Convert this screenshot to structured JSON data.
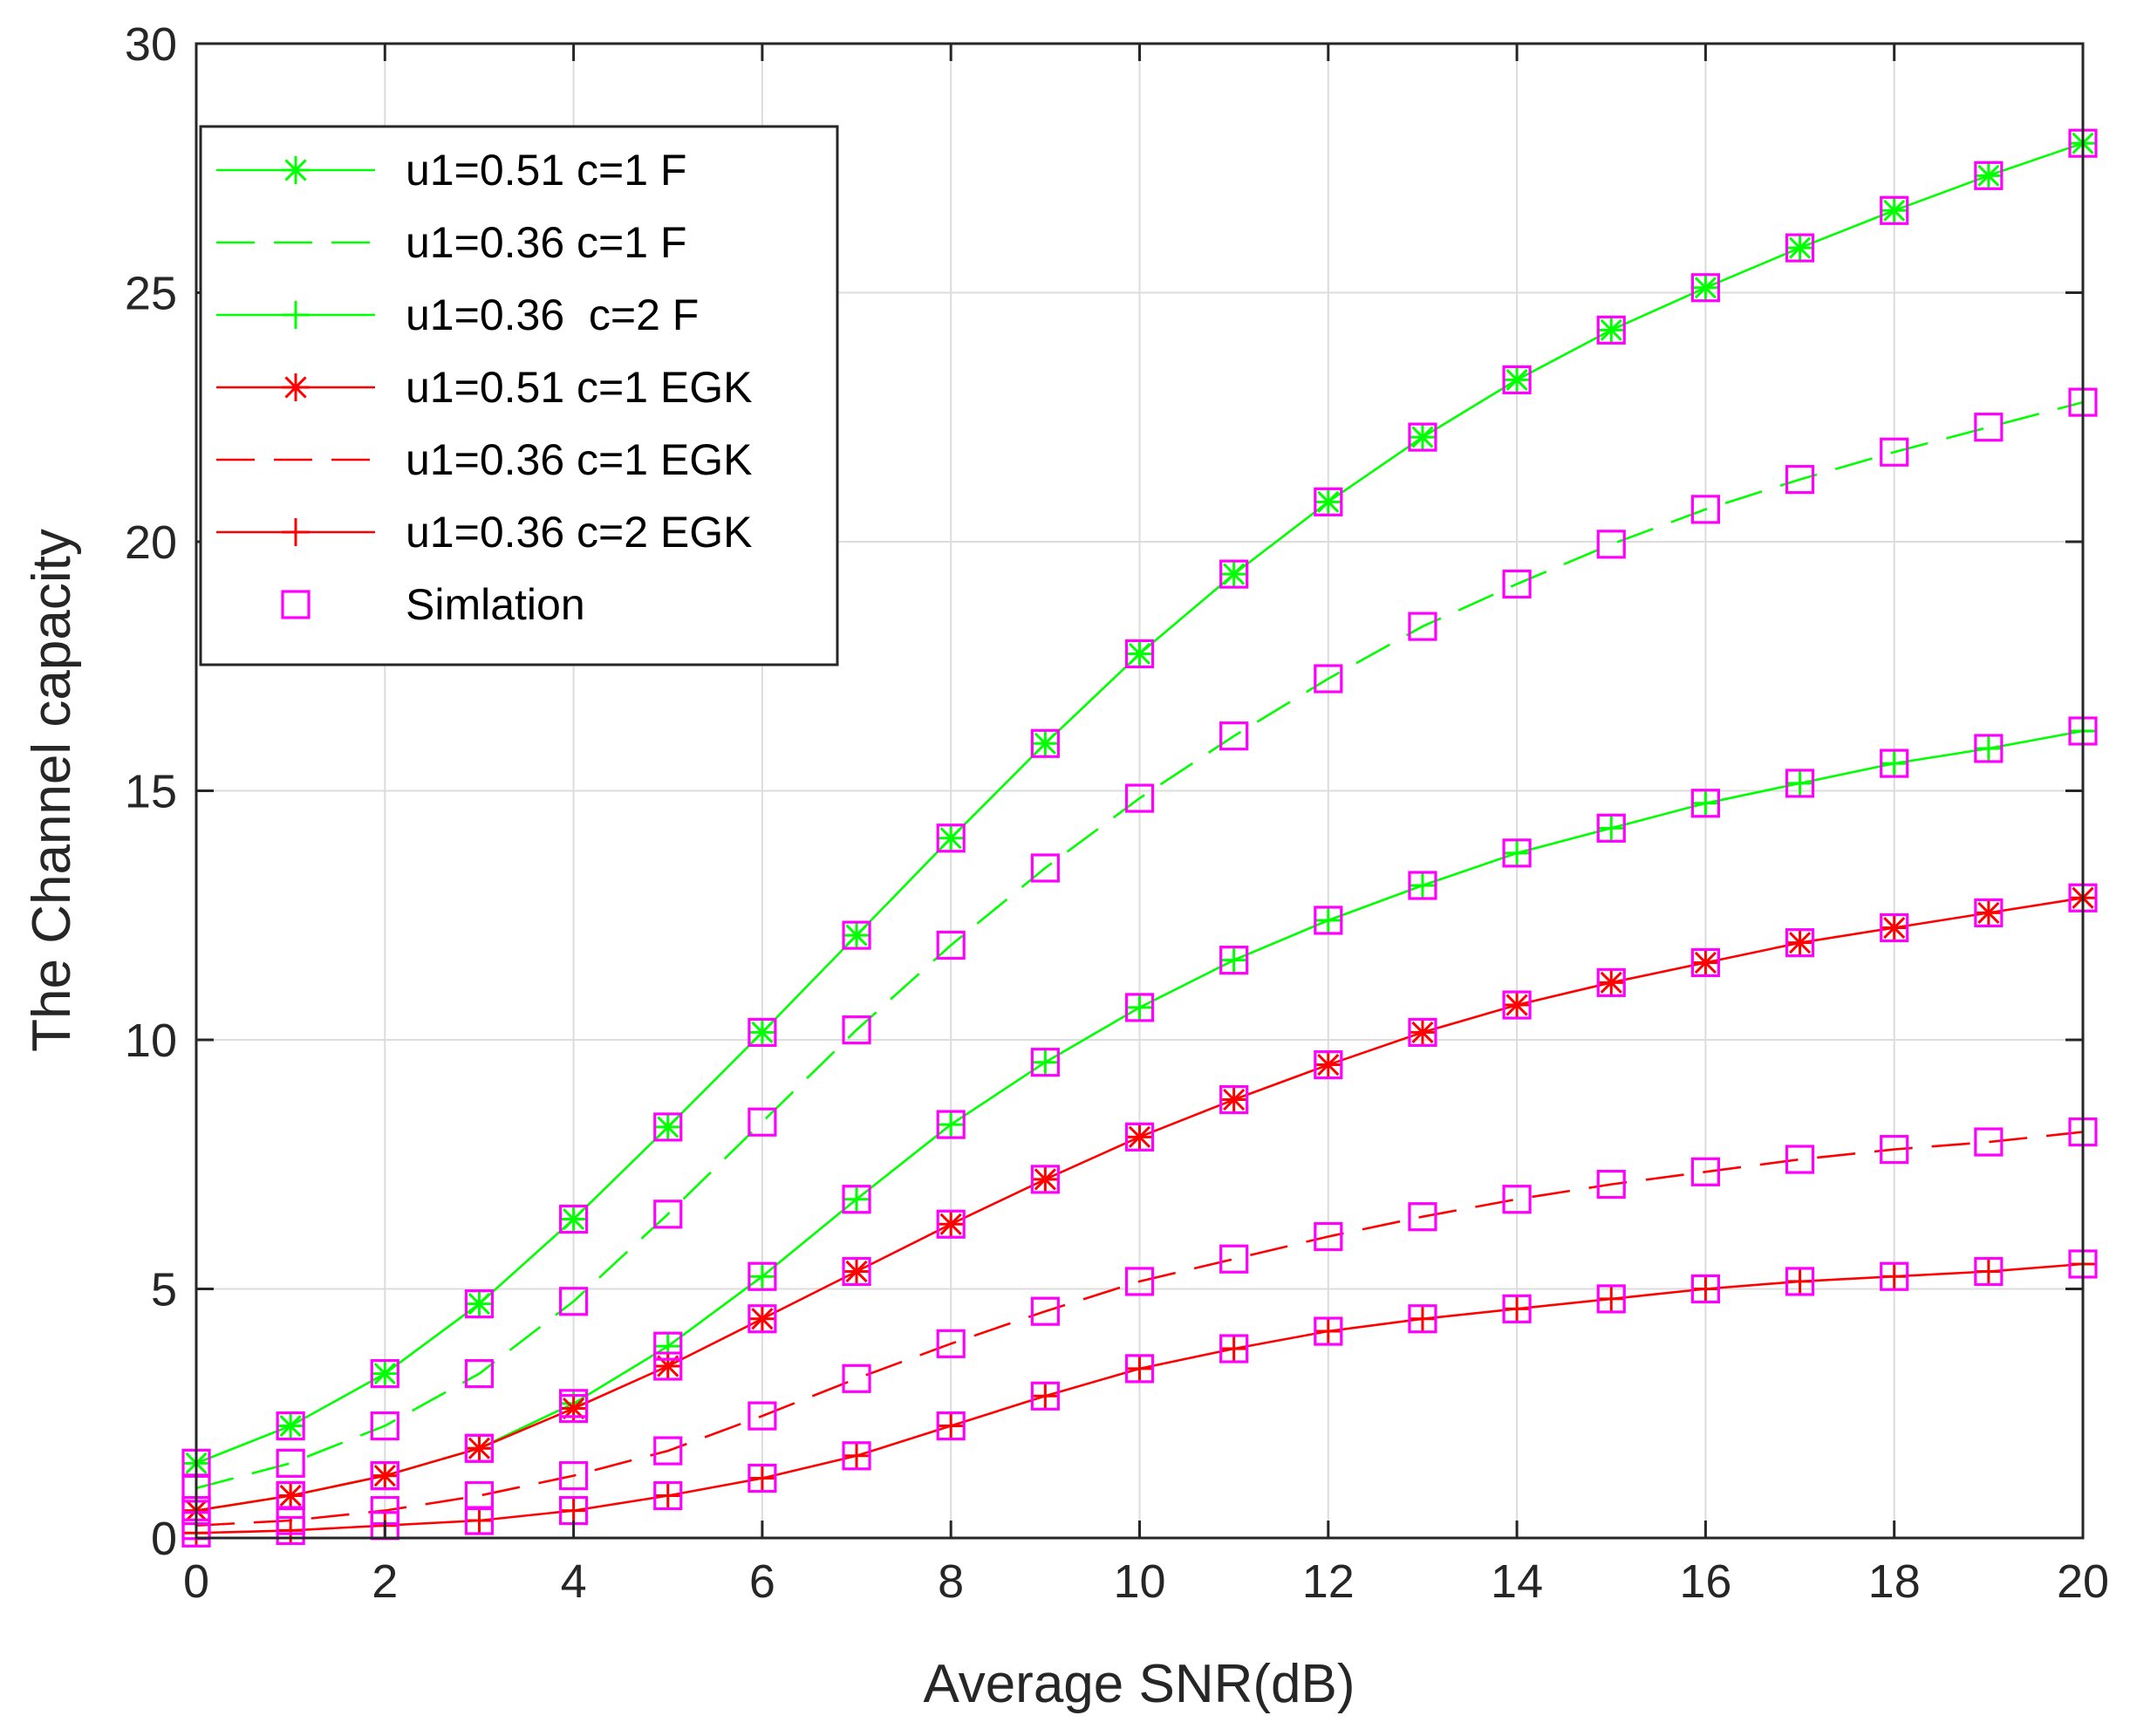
{
  "chart_data": {
    "type": "line",
    "xlabel": "Average SNR(dB)",
    "ylabel": "The Channel capacity",
    "xlim": [
      0,
      20
    ],
    "ylim": [
      0,
      30
    ],
    "xticks": [
      0,
      2,
      4,
      6,
      8,
      10,
      12,
      14,
      16,
      18,
      20
    ],
    "yticks": [
      0,
      5,
      10,
      15,
      20,
      25,
      30
    ],
    "grid": true,
    "legend_position": "top-left",
    "x": [
      0,
      1,
      2,
      3,
      4,
      5,
      6,
      7,
      8,
      9,
      10,
      11,
      12,
      13,
      14,
      15,
      16,
      17,
      18,
      19,
      20
    ],
    "series": [
      {
        "name": "u1=0.51 c=1 F",
        "color": "#00ff00",
        "line": "solid",
        "marker": "asterisk",
        "values": [
          1.5,
          2.25,
          3.3,
          4.7,
          6.4,
          8.25,
          10.15,
          12.1,
          14.05,
          15.95,
          17.75,
          19.35,
          20.8,
          22.1,
          23.25,
          24.25,
          25.1,
          25.9,
          26.65,
          27.35,
          28.0
        ]
      },
      {
        "name": "u1=0.36 c=1 F",
        "color": "#00ff00",
        "line": "dashed",
        "marker": "none",
        "values": [
          1.0,
          1.5,
          2.25,
          3.3,
          4.75,
          6.5,
          8.35,
          10.2,
          11.9,
          13.45,
          14.85,
          16.1,
          17.25,
          18.3,
          19.15,
          19.95,
          20.65,
          21.25,
          21.8,
          22.3,
          22.8
        ]
      },
      {
        "name": "u1=0.36  c=2 F",
        "color": "#00ff00",
        "line": "solid",
        "marker": "plus",
        "values": [
          0.55,
          0.85,
          1.25,
          1.8,
          2.7,
          3.85,
          5.25,
          6.8,
          8.3,
          9.55,
          10.65,
          11.6,
          12.4,
          13.1,
          13.75,
          14.25,
          14.75,
          15.15,
          15.55,
          15.85,
          16.2
        ]
      },
      {
        "name": "u1=0.51 c=1 EGK",
        "color": "#ff0000",
        "line": "solid",
        "marker": "asterisk",
        "values": [
          0.55,
          0.85,
          1.25,
          1.8,
          2.6,
          3.45,
          4.4,
          5.35,
          6.3,
          7.2,
          8.05,
          8.8,
          9.5,
          10.15,
          10.7,
          11.15,
          11.55,
          11.95,
          12.25,
          12.55,
          12.85
        ]
      },
      {
        "name": "u1=0.36 c=1 EGK",
        "color": "#ff0000",
        "line": "dashed",
        "marker": "none",
        "values": [
          0.25,
          0.35,
          0.55,
          0.85,
          1.25,
          1.75,
          2.45,
          3.2,
          3.9,
          4.55,
          5.15,
          5.6,
          6.05,
          6.45,
          6.8,
          7.1,
          7.35,
          7.6,
          7.8,
          7.95,
          8.15
        ]
      },
      {
        "name": "u1=0.36 c=2 EGK",
        "color": "#ff0000",
        "line": "solid",
        "marker": "plus",
        "values": [
          0.1,
          0.15,
          0.25,
          0.35,
          0.55,
          0.85,
          1.2,
          1.65,
          2.25,
          2.85,
          3.4,
          3.8,
          4.15,
          4.4,
          4.6,
          4.8,
          5.0,
          5.15,
          5.25,
          5.35,
          5.5
        ]
      }
    ],
    "simulation": {
      "name": "Simlation",
      "color": "#ff00ff",
      "marker": "square",
      "applies_to_all_series": true
    }
  }
}
